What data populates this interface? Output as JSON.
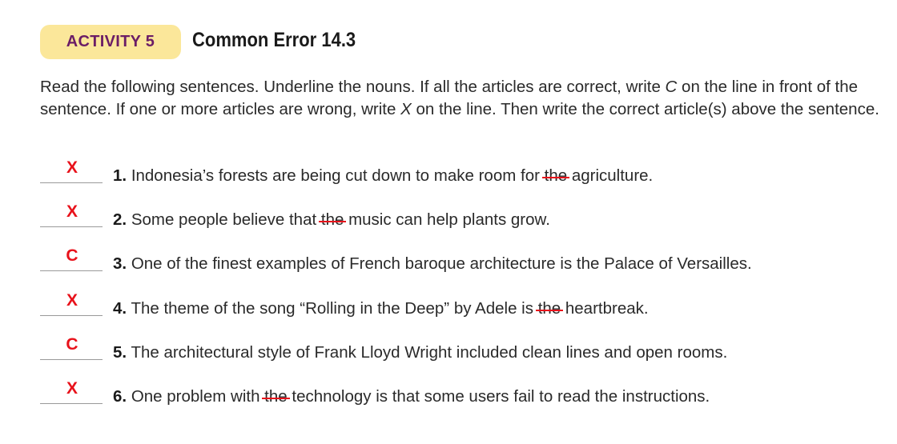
{
  "header": {
    "badge": "ACTIVITY 5",
    "title": "Common Error 14.3"
  },
  "instructions": {
    "part1": "Read the following sentences. Underline the nouns. If all the articles are correct, write ",
    "c": "C",
    "part2": " on the line in front of the sentence. If one or more articles are wrong, write ",
    "x": "X",
    "part3": " on the line. Then write the correct article(s) above the sentence."
  },
  "items": [
    {
      "answer": "X",
      "number": "1.",
      "before": "Indonesia’s forests are being cut down to make room for ",
      "struck": "the",
      "after": " agriculture."
    },
    {
      "answer": "X",
      "number": "2.",
      "before": "Some people believe that ",
      "struck": "the",
      "after": " music can help plants grow."
    },
    {
      "answer": "C",
      "number": "3.",
      "before": "One of the finest examples of French baroque architecture is the Palace of Versailles.",
      "struck": "",
      "after": ""
    },
    {
      "answer": "X",
      "number": "4.",
      "before": "The theme of the song “Rolling in the Deep” by Adele is ",
      "struck": "the",
      "after": " heartbreak."
    },
    {
      "answer": "C",
      "number": "5.",
      "before": "The architectural style of Frank Lloyd Wright included clean lines and open rooms.",
      "struck": "",
      "after": ""
    },
    {
      "answer": "X",
      "number": "6.",
      "before": "One problem with ",
      "struck": "the",
      "after": " technology is that some users fail to read the instructions."
    }
  ]
}
